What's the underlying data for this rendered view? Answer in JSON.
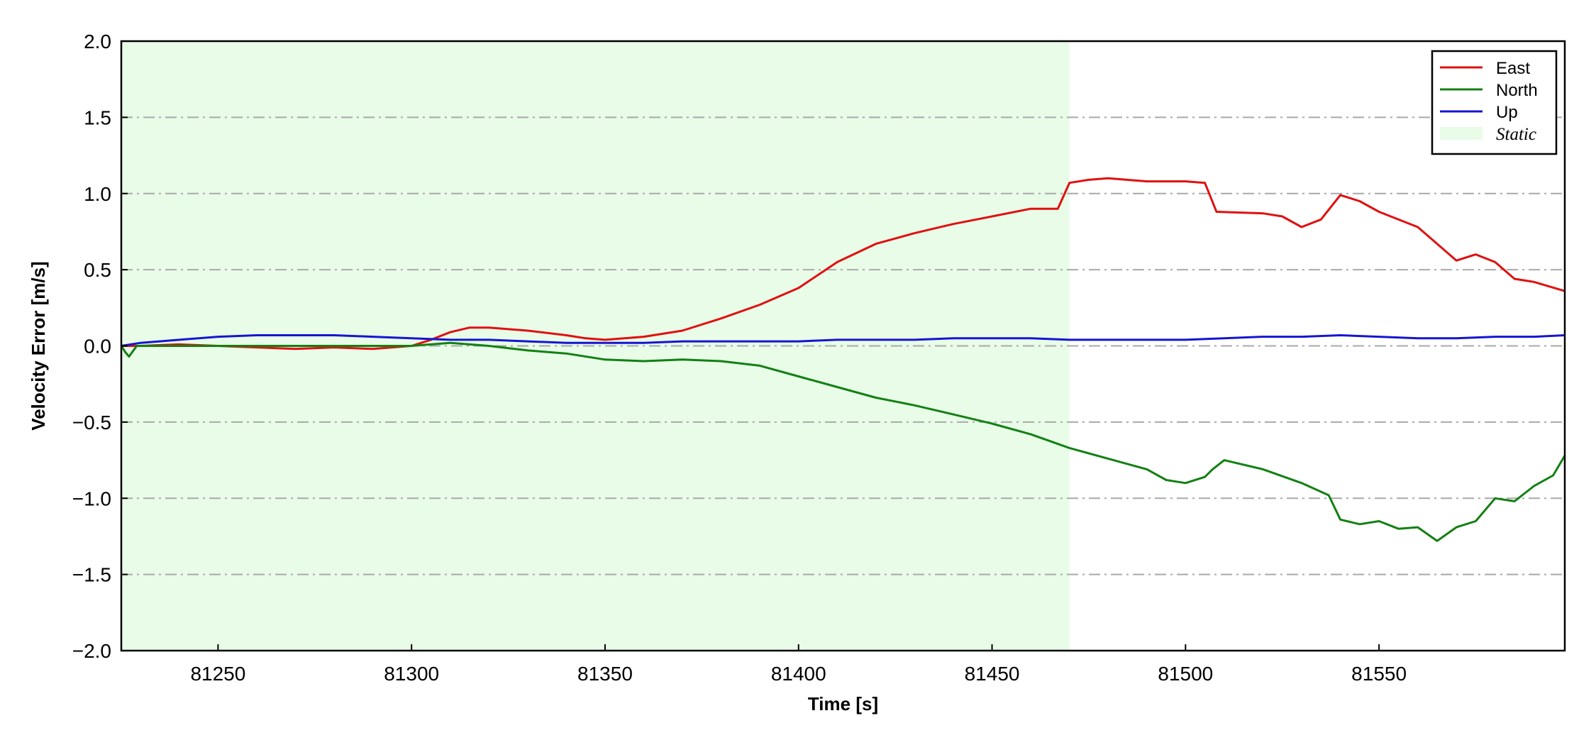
{
  "chart_data": {
    "type": "line",
    "xlabel": "Time [s]",
    "ylabel": "Velocity Error [m/s]",
    "xlim": [
      81225,
      81598
    ],
    "ylim": [
      -2.0,
      2.0
    ],
    "x_ticks": [
      81250,
      81300,
      81350,
      81400,
      81450,
      81500,
      81550
    ],
    "y_ticks": [
      -2.0,
      -1.5,
      -1.0,
      -0.5,
      0.0,
      0.5,
      1.0,
      1.5,
      2.0
    ],
    "y_tick_labels": [
      "−2.0",
      "−1.5",
      "−1.0",
      "−0.5",
      "0.0",
      "0.5",
      "1.0",
      "1.5",
      "2.0"
    ],
    "grid": "horizontal dash-dot",
    "legend_position": "top-right",
    "shaded_region": {
      "name": "Static",
      "x_start": 81225,
      "x_end": 81470,
      "color": "#e8fce8"
    },
    "series": [
      {
        "name": "East",
        "color": "#e01010",
        "points": [
          [
            81225,
            0.0
          ],
          [
            81230,
            0.0
          ],
          [
            81240,
            0.01
          ],
          [
            81250,
            0.0
          ],
          [
            81260,
            -0.01
          ],
          [
            81270,
            -0.02
          ],
          [
            81280,
            -0.01
          ],
          [
            81290,
            -0.02
          ],
          [
            81300,
            0.0
          ],
          [
            81305,
            0.04
          ],
          [
            81310,
            0.09
          ],
          [
            81315,
            0.12
          ],
          [
            81320,
            0.12
          ],
          [
            81330,
            0.1
          ],
          [
            81340,
            0.07
          ],
          [
            81345,
            0.05
          ],
          [
            81350,
            0.04
          ],
          [
            81360,
            0.06
          ],
          [
            81370,
            0.1
          ],
          [
            81380,
            0.18
          ],
          [
            81390,
            0.27
          ],
          [
            81400,
            0.38
          ],
          [
            81410,
            0.55
          ],
          [
            81420,
            0.67
          ],
          [
            81430,
            0.74
          ],
          [
            81440,
            0.8
          ],
          [
            81450,
            0.85
          ],
          [
            81460,
            0.9
          ],
          [
            81467,
            0.9
          ],
          [
            81470,
            1.07
          ],
          [
            81475,
            1.09
          ],
          [
            81480,
            1.1
          ],
          [
            81490,
            1.08
          ],
          [
            81500,
            1.08
          ],
          [
            81505,
            1.07
          ],
          [
            81508,
            0.88
          ],
          [
            81520,
            0.87
          ],
          [
            81525,
            0.85
          ],
          [
            81530,
            0.78
          ],
          [
            81535,
            0.83
          ],
          [
            81540,
            0.99
          ],
          [
            81545,
            0.95
          ],
          [
            81550,
            0.88
          ],
          [
            81560,
            0.78
          ],
          [
            81565,
            0.67
          ],
          [
            81570,
            0.56
          ],
          [
            81575,
            0.6
          ],
          [
            81580,
            0.55
          ],
          [
            81585,
            0.44
          ],
          [
            81590,
            0.42
          ],
          [
            81598,
            0.36
          ]
        ]
      },
      {
        "name": "North",
        "color": "#138013",
        "points": [
          [
            81225,
            0.0
          ],
          [
            81226,
            -0.04
          ],
          [
            81227,
            -0.07
          ],
          [
            81229,
            0.0
          ],
          [
            81240,
            0.0
          ],
          [
            81250,
            0.0
          ],
          [
            81260,
            0.0
          ],
          [
            81270,
            0.0
          ],
          [
            81280,
            0.0
          ],
          [
            81290,
            0.0
          ],
          [
            81300,
            0.0
          ],
          [
            81310,
            0.02
          ],
          [
            81320,
            0.0
          ],
          [
            81330,
            -0.03
          ],
          [
            81340,
            -0.05
          ],
          [
            81350,
            -0.09
          ],
          [
            81360,
            -0.1
          ],
          [
            81370,
            -0.09
          ],
          [
            81380,
            -0.1
          ],
          [
            81390,
            -0.13
          ],
          [
            81400,
            -0.2
          ],
          [
            81410,
            -0.27
          ],
          [
            81420,
            -0.34
          ],
          [
            81430,
            -0.39
          ],
          [
            81440,
            -0.45
          ],
          [
            81450,
            -0.51
          ],
          [
            81460,
            -0.58
          ],
          [
            81470,
            -0.67
          ],
          [
            81480,
            -0.74
          ],
          [
            81490,
            -0.81
          ],
          [
            81495,
            -0.88
          ],
          [
            81500,
            -0.9
          ],
          [
            81505,
            -0.86
          ],
          [
            81507,
            -0.81
          ],
          [
            81510,
            -0.75
          ],
          [
            81520,
            -0.81
          ],
          [
            81530,
            -0.9
          ],
          [
            81537,
            -0.98
          ],
          [
            81540,
            -1.14
          ],
          [
            81545,
            -1.17
          ],
          [
            81550,
            -1.15
          ],
          [
            81555,
            -1.2
          ],
          [
            81560,
            -1.19
          ],
          [
            81565,
            -1.28
          ],
          [
            81570,
            -1.19
          ],
          [
            81575,
            -1.15
          ],
          [
            81580,
            -1.0
          ],
          [
            81585,
            -1.02
          ],
          [
            81590,
            -0.92
          ],
          [
            81595,
            -0.85
          ],
          [
            81598,
            -0.72
          ]
        ]
      },
      {
        "name": "Up",
        "color": "#1515d0",
        "points": [
          [
            81225,
            0.0
          ],
          [
            81230,
            0.02
          ],
          [
            81240,
            0.04
          ],
          [
            81250,
            0.06
          ],
          [
            81260,
            0.07
          ],
          [
            81270,
            0.07
          ],
          [
            81280,
            0.07
          ],
          [
            81290,
            0.06
          ],
          [
            81300,
            0.05
          ],
          [
            81310,
            0.04
          ],
          [
            81320,
            0.04
          ],
          [
            81330,
            0.03
          ],
          [
            81340,
            0.02
          ],
          [
            81350,
            0.02
          ],
          [
            81360,
            0.02
          ],
          [
            81370,
            0.03
          ],
          [
            81380,
            0.03
          ],
          [
            81390,
            0.03
          ],
          [
            81400,
            0.03
          ],
          [
            81410,
            0.04
          ],
          [
            81420,
            0.04
          ],
          [
            81430,
            0.04
          ],
          [
            81440,
            0.05
          ],
          [
            81450,
            0.05
          ],
          [
            81460,
            0.05
          ],
          [
            81470,
            0.04
          ],
          [
            81480,
            0.04
          ],
          [
            81490,
            0.04
          ],
          [
            81500,
            0.04
          ],
          [
            81510,
            0.05
          ],
          [
            81520,
            0.06
          ],
          [
            81530,
            0.06
          ],
          [
            81540,
            0.07
          ],
          [
            81550,
            0.06
          ],
          [
            81560,
            0.05
          ],
          [
            81570,
            0.05
          ],
          [
            81580,
            0.06
          ],
          [
            81590,
            0.06
          ],
          [
            81598,
            0.07
          ]
        ]
      }
    ]
  }
}
